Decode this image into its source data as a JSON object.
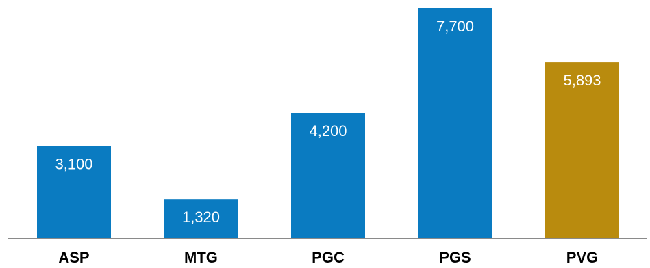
{
  "chart_data": {
    "type": "bar",
    "categories": [
      "ASP",
      "MTG",
      "PGC",
      "PGS",
      "PVG"
    ],
    "values": [
      3100,
      1320,
      4200,
      7700,
      5893
    ],
    "value_labels": [
      "3,100",
      "1,320",
      "4,200",
      "7,700",
      "5,893"
    ],
    "bar_colors": [
      "#0a7bc1",
      "#0a7bc1",
      "#0a7bc1",
      "#0a7bc1",
      "#b98b0e"
    ],
    "title": "",
    "xlabel": "",
    "ylabel": "",
    "ylim": [
      0,
      7700
    ],
    "grid": false,
    "legend": "none"
  }
}
